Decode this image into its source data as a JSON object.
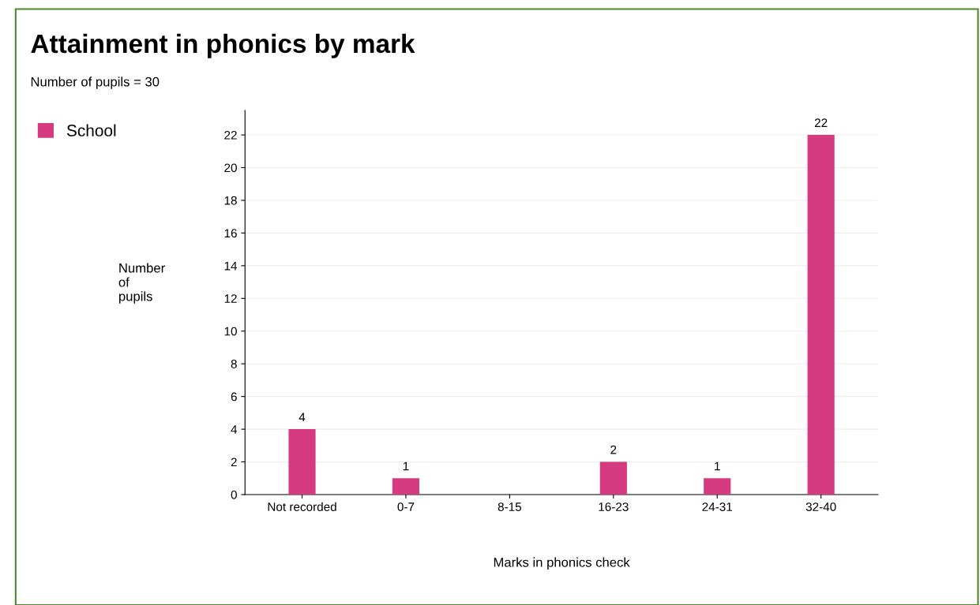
{
  "chart_data": {
    "type": "bar",
    "title": "Attainment in phonics by mark",
    "subtitle": "Number of pupils = 30",
    "xlabel": "Marks in phonics check",
    "ylabel": "Number\nof\npupils",
    "categories": [
      "Not recorded",
      "0-7",
      "8-15",
      "16-23",
      "24-31",
      "32-40"
    ],
    "series": [
      {
        "name": "School",
        "color": "#d63a80",
        "values": [
          4,
          1,
          0,
          2,
          1,
          22
        ],
        "value_labels": [
          "4",
          "1",
          null,
          "2",
          "1",
          "22"
        ]
      }
    ],
    "ylim": [
      0,
      23.5
    ],
    "yticks": [
      0,
      2,
      4,
      6,
      8,
      10,
      12,
      14,
      16,
      18,
      20,
      22
    ],
    "grid": "y",
    "legend": "top left"
  }
}
